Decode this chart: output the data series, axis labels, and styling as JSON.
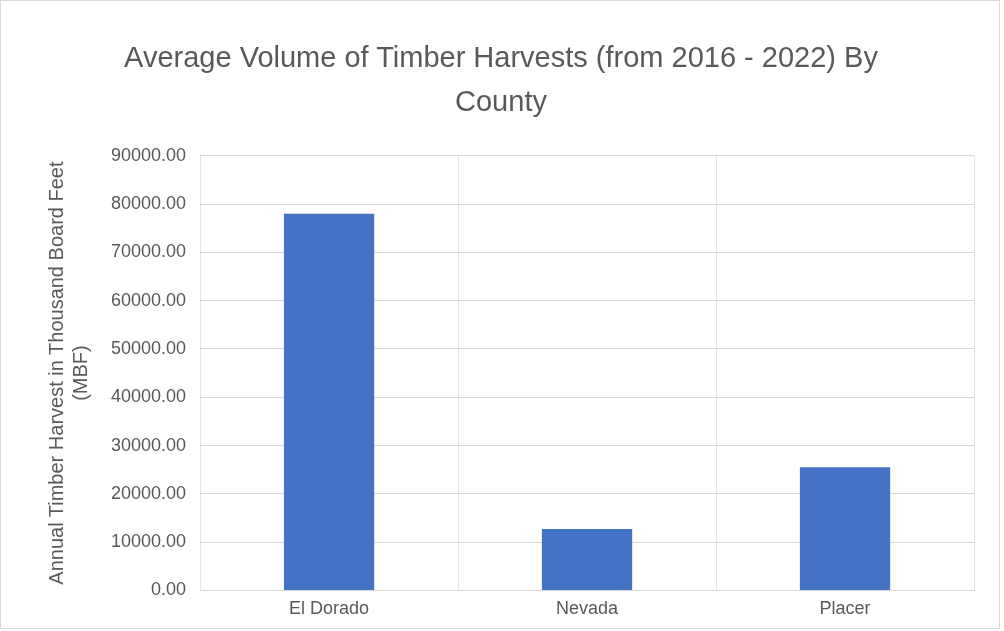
{
  "chart_data": {
    "type": "bar",
    "title": "Average Volume of Timber Harvests (from 2016 - 2022) By County",
    "ylabel": "Annual Timber Harvest in Thousand Board Feet (MBF)",
    "categories": [
      "El Dorado",
      "Nevada",
      "Placer"
    ],
    "values": [
      78000,
      12700,
      25500
    ],
    "color": "#4472c4",
    "ylim": [
      0,
      90000
    ],
    "yticks": [
      {
        "value": 0,
        "label": "0.00"
      },
      {
        "value": 10000,
        "label": "10000.00"
      },
      {
        "value": 20000,
        "label": "20000.00"
      },
      {
        "value": 30000,
        "label": "30000.00"
      },
      {
        "value": 40000,
        "label": "40000.00"
      },
      {
        "value": 50000,
        "label": "50000.00"
      },
      {
        "value": 60000,
        "label": "60000.00"
      },
      {
        "value": 70000,
        "label": "70000.00"
      },
      {
        "value": 80000,
        "label": "80000.00"
      },
      {
        "value": 90000,
        "label": "90000.00"
      }
    ],
    "grid": true,
    "legend": false
  }
}
